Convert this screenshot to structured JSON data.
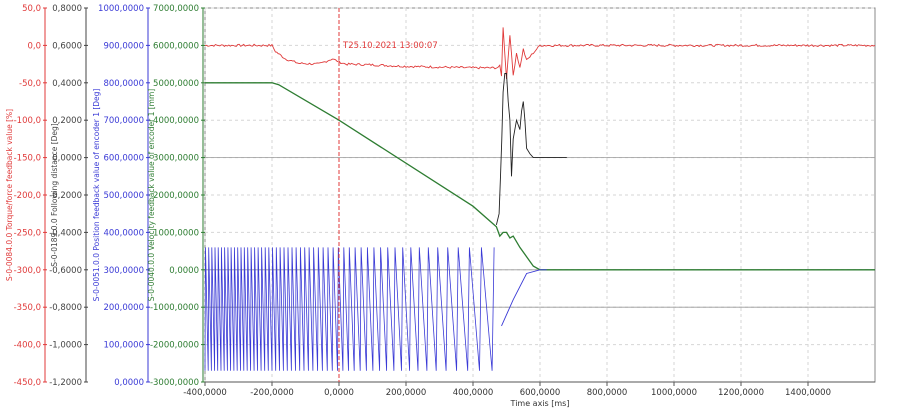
{
  "chart_data": {
    "type": "line",
    "x_range": [
      -400000,
      1600000
    ],
    "x_ticks": [
      "-400,0000",
      "-200,0000",
      "0,0000",
      "200,0000",
      "400,0000",
      "600,0000",
      "800,0000",
      "1000,0000",
      "1200,0000",
      "1400,0000"
    ],
    "x_tick_values": [
      -400000,
      -200000,
      0,
      200000,
      400000,
      600000,
      800000,
      1000000,
      1200000,
      1400000
    ],
    "xlabel": "Time axis [ms]",
    "grid": true,
    "axes": [
      {
        "id": "torque",
        "title": "S-0-0084.0.0 Torque/force feedback value [%]",
        "color": "#e03a3a",
        "range": [
          -450,
          50
        ],
        "ticks": [
          "50,0",
          "0,0",
          "-50,0",
          "-100,0",
          "-150,0",
          "-200,0",
          "-250,0",
          "-300,0",
          "-350,0",
          "-400,0",
          "-450,0"
        ]
      },
      {
        "id": "following",
        "title": "S-0-0189.0.0 Following distance [Deg]",
        "color": "#444444",
        "range": [
          -1.2,
          0.8
        ],
        "ticks": [
          "0,8000",
          "0,6000",
          "0,4000",
          "0,2000",
          "0,0000",
          "-0,2000",
          "-0,4000",
          "-0,6000",
          "-0,8000",
          "-1,0000",
          "-1,2000"
        ]
      },
      {
        "id": "position",
        "title": "S-0-0051.0.0 Position feedback value of encoder 1 [Deg]",
        "color": "#3a3ad6",
        "range": [
          0,
          1000000
        ],
        "ticks": [
          "1000,0000",
          "900,0000",
          "800,0000",
          "700,0000",
          "600,0000",
          "500,0000",
          "400,0000",
          "300,0000",
          "200,0000",
          "100,0000",
          "0,0000"
        ]
      },
      {
        "id": "velocity",
        "title": "S-0-0040.0.0 Velocity feedback value of encoder 1 [mm]",
        "color": "#2e7d32",
        "range": [
          -3000000,
          7000000
        ],
        "ticks": [
          "7000,0000",
          "6000,0000",
          "5000,0000",
          "4000,0000",
          "3000,0000",
          "2000,0000",
          "1000,0000",
          "0,0000",
          "-1000,0000",
          "-2000,0000",
          "-3000,0000"
        ]
      }
    ],
    "cursor": {
      "x": 0,
      "label": "T25.10.2021 13:00:07",
      "color": "#e03a3a"
    },
    "series": [
      {
        "axis": "torque",
        "color": "#e03a3a",
        "noise": 3,
        "x": [
          -400000,
          -200000,
          -190000,
          -160000,
          -120000,
          -60000,
          -20000,
          0,
          20000,
          100000,
          200000,
          300000,
          400000,
          470000,
          480000,
          485000,
          490000,
          500000,
          510000,
          520000,
          530000,
          540000,
          550000,
          560000,
          570000,
          580000,
          590000,
          600000,
          1600000
        ],
        "values": [
          0,
          0,
          -8,
          -18,
          -24,
          -25,
          -18,
          -22,
          -25,
          -26,
          -28,
          -29,
          -30,
          -30,
          -28,
          -40,
          25,
          -45,
          15,
          -40,
          -10,
          -30,
          -5,
          -20,
          -15,
          -10,
          -5,
          0,
          0
        ]
      },
      {
        "axis": "velocity",
        "color": "#2e7d32",
        "noise": 0,
        "x": [
          -400000,
          -200000,
          -180000,
          0,
          400000,
          470000,
          480000,
          490000,
          500000,
          510000,
          520000,
          540000,
          560000,
          580000,
          600000,
          1600000
        ],
        "values": [
          5000000,
          5000000,
          4950000,
          4000000,
          1700000,
          1150000,
          900000,
          1000000,
          1000000,
          850000,
          900000,
          600000,
          350000,
          100000,
          0,
          0
        ]
      },
      {
        "axis": "following",
        "color": "#222222",
        "noise": 0,
        "x": [
          470000,
          478000,
          482000,
          486000,
          490000,
          495000,
          500000,
          505000,
          510000,
          515000,
          520000,
          530000,
          540000,
          545000,
          550000,
          555000,
          560000,
          570000,
          580000,
          600000,
          680000
        ],
        "values": [
          -0.36,
          -0.3,
          -0.1,
          0.1,
          0.35,
          0.45,
          0.45,
          0.3,
          0.2,
          -0.1,
          0.1,
          0.2,
          0.15,
          0.25,
          0.3,
          0.2,
          0.05,
          0.02,
          0.0,
          0.0,
          0.0
        ]
      },
      {
        "axis": "position",
        "color": "#3a3ad6",
        "noise": 0,
        "sawtooth": {
          "x_start": -400000,
          "x_end": 480000,
          "period_start": 9500,
          "period_end": 42000,
          "low": 30000,
          "high": 360000
        },
        "x": [
          485000,
          520000,
          560000,
          600000,
          620000
        ],
        "values": [
          150000,
          220000,
          290000,
          300000,
          300000
        ]
      }
    ]
  }
}
